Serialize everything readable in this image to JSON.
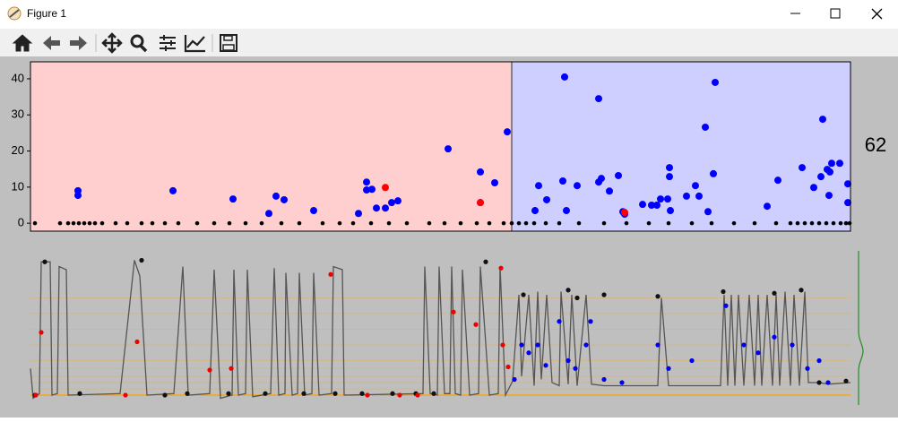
{
  "window": {
    "title": "Figure 1"
  },
  "figure": {
    "annotation": "62"
  },
  "chart_data": [
    {
      "type": "scatter",
      "xlim": [
        0,
        915
      ],
      "ylim": [
        -2.2,
        44.7
      ],
      "yticks": [
        0,
        10,
        20,
        30,
        40
      ],
      "spans": [
        {
          "xlim": [
            0,
            537
          ],
          "color": "#ffcfcf"
        },
        {
          "xlim": [
            537,
            915
          ],
          "color": "#cfcfff"
        }
      ],
      "series": [
        {
          "color": "#000000",
          "radius": 2.3,
          "x": [
            5,
            33,
            42,
            48,
            54,
            60,
            66,
            72,
            80,
            95,
            108,
            124,
            136,
            150,
            165,
            186,
            205,
            222,
            240,
            258,
            280,
            300,
            326,
            345,
            360,
            380,
            400,
            420,
            445,
            462,
            480,
            498,
            512,
            528,
            537,
            545,
            553,
            562,
            575,
            590,
            612,
            640,
            665,
            690,
            712,
            738,
            760,
            785,
            808,
            832,
            848,
            856,
            864,
            872,
            880,
            888,
            896,
            904,
            910,
            914
          ],
          "values": [
            0,
            0,
            0,
            0,
            0,
            0,
            0,
            0,
            0,
            0,
            0,
            0,
            0,
            0,
            0,
            0,
            0,
            0,
            0,
            0,
            0,
            0,
            0,
            0,
            0,
            0,
            0,
            0,
            0,
            0,
            0,
            0,
            0,
            0,
            0,
            0,
            0,
            0,
            0,
            0,
            0,
            0,
            0,
            0,
            0,
            0,
            0,
            0,
            0,
            0,
            0,
            0,
            0,
            0,
            0,
            0,
            0,
            0,
            0,
            0
          ]
        },
        {
          "color": "#0000ff",
          "radius": 4,
          "x": [
            53,
            53,
            159,
            226,
            266,
            274,
            283,
            316,
            366,
            375,
            375,
            381,
            386,
            396,
            403,
            410,
            466,
            502,
            502,
            518,
            532,
            563,
            567,
            576,
            594,
            596,
            598,
            610,
            634,
            634,
            637,
            646,
            656,
            661,
            663,
            683,
            693,
            699,
            703,
            711,
            713,
            713,
            714,
            732,
            742,
            746,
            753,
            756,
            762,
            764,
            822,
            834,
            861,
            874,
            884,
            882,
            889,
            892,
            894,
            903,
            891,
            912,
            912
          ],
          "values": [
            9,
            7.7,
            9,
            6.7,
            2.7,
            7.5,
            6.5,
            3.5,
            2.7,
            11.4,
            9.2,
            9.4,
            4.2,
            4.2,
            5.7,
            6.2,
            20.6,
            14.2,
            5.7,
            11.2,
            25.3,
            3.5,
            10.4,
            6.5,
            11.7,
            40.5,
            3.5,
            10.4,
            34.5,
            11.4,
            12.4,
            8.9,
            13.2,
            3.2,
            2.5,
            5.2,
            5,
            5,
            6.7,
            6.7,
            15.4,
            12.9,
            3.5,
            7.5,
            10.4,
            7.5,
            26.6,
            3.2,
            13.7,
            39,
            4.7,
            11.9,
            15.4,
            9.9,
            28.8,
            12.9,
            14.9,
            14.2,
            16.6,
            16.6,
            7.7,
            10.9,
            5.7
          ]
        },
        {
          "color": "#ff0000",
          "radius": 4,
          "x": [
            396,
            502,
            663
          ],
          "values": [
            9.9,
            5.7,
            3
          ]
        }
      ]
    },
    {
      "type": "line",
      "xlim": [
        0,
        915
      ],
      "ylim": [
        0,
        100
      ],
      "hlines": {
        "color": "#f0a830",
        "values": [
          8,
          12,
          16,
          20,
          25,
          30,
          40,
          50,
          60,
          70
        ]
      },
      "series": [
        {
          "mode": "line",
          "color": "#555555",
          "x": [
            0,
            3,
            10,
            12,
            22,
            24,
            30,
            32,
            40,
            42,
            100,
            116,
            122,
            130,
            160,
            170,
            176,
            200,
            205,
            212,
            225,
            227,
            232,
            240,
            242,
            248,
            268,
            272,
            277,
            284,
            285,
            292,
            298,
            300,
            306,
            314,
            316,
            322,
            336,
            338,
            348,
            350,
            438,
            440,
            446,
            454,
            456,
            462,
            468,
            470,
            474,
            480,
            482,
            490,
            500,
            502,
            512,
            522,
            524,
            530,
            538,
            545,
            548,
            556,
            562,
            566,
            570,
            576,
            582,
            590,
            592,
            600,
            604,
            610,
            620,
            626,
            640,
            700,
            704,
            712,
            770,
            774,
            778,
            782,
            786,
            790,
            796,
            802,
            808,
            812,
            816,
            822,
            828,
            832,
            836,
            842,
            848,
            852,
            858,
            864,
            868,
            875,
            880,
            890,
            915
          ],
          "values": [
            25,
            6,
            9,
            93,
            93,
            8,
            9,
            90,
            88,
            8,
            9,
            94,
            84,
            8,
            9,
            90,
            8,
            9,
            88,
            6,
            8,
            88,
            8,
            9,
            88,
            7,
            9,
            89,
            8,
            9,
            86,
            8,
            9,
            86,
            8,
            9,
            86,
            8,
            9,
            90,
            88,
            8,
            9,
            90,
            9,
            8,
            90,
            9,
            9,
            90,
            9,
            8,
            88,
            8,
            9,
            90,
            8,
            9,
            90,
            8,
            17,
            72,
            20,
            72,
            14,
            74,
            18,
            72,
            16,
            14,
            74,
            15,
            72,
            14,
            72,
            15,
            14,
            14,
            70,
            14,
            14,
            72,
            14,
            72,
            14,
            72,
            14,
            72,
            14,
            72,
            14,
            72,
            14,
            72,
            14,
            74,
            14,
            72,
            14,
            74,
            16,
            16,
            16,
            15,
            16
          ]
        },
        {
          "mode": "markers",
          "color": "#111111",
          "radius": 2.6,
          "x": [
            5,
            16,
            55,
            124,
            150,
            175,
            221,
            262,
            305,
            340,
            370,
            404,
            430,
            450,
            508,
            550,
            600,
            610,
            640,
            700,
            773,
            830,
            860,
            880,
            910
          ],
          "values": [
            8,
            93,
            9,
            94,
            8,
            9,
            9,
            9,
            9,
            9,
            9,
            9,
            9,
            9,
            93,
            72,
            75,
            70,
            72,
            71,
            74,
            73,
            75,
            16,
            17
          ]
        },
        {
          "mode": "markers",
          "color": "#ee0000",
          "radius": 2.6,
          "x": [
            6,
            12,
            106,
            119,
            200,
            224,
            335,
            376,
            412,
            432,
            472,
            497,
            525,
            527,
            533
          ],
          "values": [
            8,
            48,
            8,
            42,
            24,
            25,
            85,
            8,
            8,
            8,
            61,
            53,
            89,
            40,
            26
          ]
        },
        {
          "mode": "markers",
          "color": "#0000ee",
          "radius": 2.6,
          "x": [
            540,
            548,
            556,
            566,
            575,
            590,
            600,
            608,
            620,
            625,
            640,
            660,
            700,
            712,
            738,
            776,
            796,
            812,
            830,
            850,
            867,
            880,
            890
          ],
          "values": [
            18,
            40,
            35,
            40,
            27,
            55,
            30,
            25,
            40,
            55,
            18,
            16,
            40,
            25,
            30,
            65,
            40,
            35,
            45,
            40,
            25,
            30,
            16
          ]
        }
      ]
    }
  ]
}
